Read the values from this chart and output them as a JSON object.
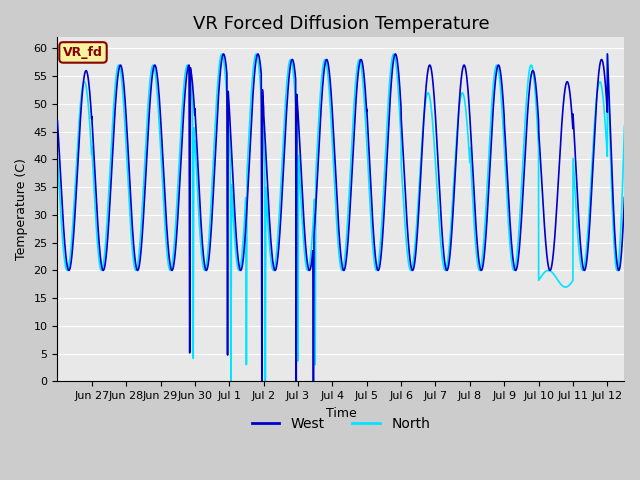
{
  "title": "VR Forced Diffusion Temperature",
  "xlabel": "Time",
  "ylabel": "Temperature (C)",
  "ylim": [
    0,
    62
  ],
  "bg_color": "#e8e8e8",
  "grid_color": "#ffffff",
  "west_color": "#0000cd",
  "north_color": "#00e5ff",
  "legend_label_west": "West",
  "legend_label_north": "North",
  "vr_fd_label": "VR_fd",
  "vr_fd_bg": "#f5f5a0",
  "vr_fd_border": "#8b0000",
  "vr_fd_text_color": "#8b0000",
  "title_fontsize": 13,
  "axis_label_fontsize": 9,
  "tick_fontsize": 8,
  "legend_fontsize": 10,
  "yticks": [
    0,
    5,
    10,
    15,
    20,
    25,
    30,
    35,
    40,
    45,
    50,
    55,
    60
  ],
  "xtick_labels": [
    "Jun 27",
    "Jun 28",
    "Jun 29",
    "Jun 30",
    "Jul 1",
    "Jul 2",
    "Jul 3",
    "Jul 4",
    "Jul 5",
    "Jul 6",
    "Jul 7",
    "Jul 8",
    "Jul 9",
    "Jul 10",
    "Jul 11",
    "Jul 12"
  ],
  "total_days": 16.5,
  "t_min_base": 20,
  "t_max_base": 57
}
